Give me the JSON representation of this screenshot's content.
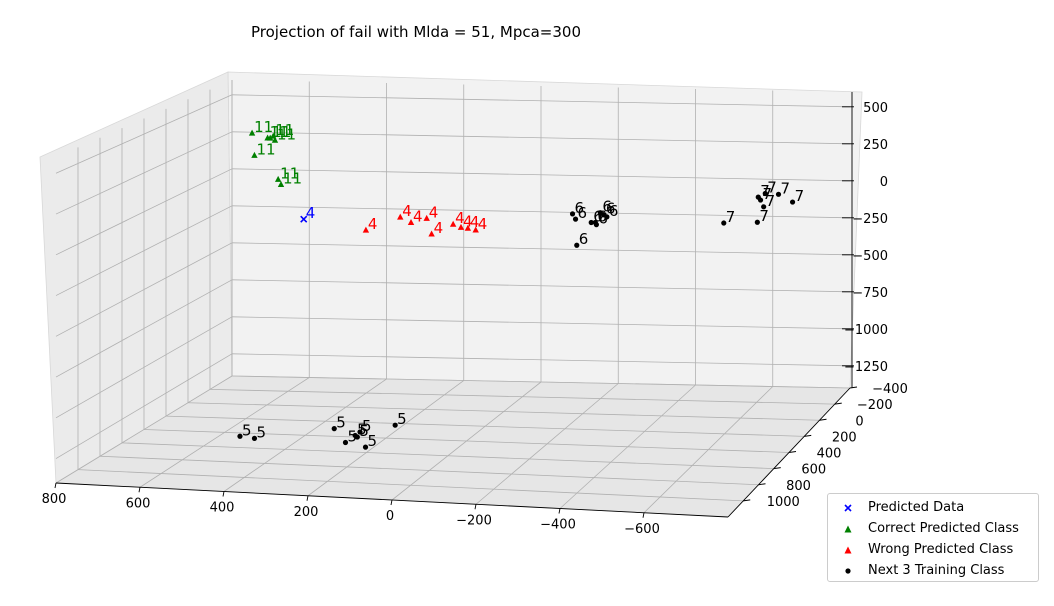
{
  "chart_data": {
    "type": "scatter",
    "title": "Projection of fail with Mlda = 51, Mpca=300",
    "axes": {
      "x": {
        "ticks": [
          800,
          600,
          400,
          200,
          0,
          -200,
          -400,
          -600
        ],
        "tick_labels": [
          "800",
          "600",
          "400",
          "200",
          "0",
          "−200",
          "−400",
          "−600"
        ]
      },
      "y": {
        "ticks": [
          -400,
          -200,
          0,
          200,
          400,
          600,
          800,
          1000
        ],
        "tick_labels": [
          "−400",
          "−200",
          "0",
          "200",
          "400",
          "600",
          "800",
          "1000"
        ]
      },
      "z": {
        "ticks": [
          500,
          250,
          0,
          -250,
          -500,
          -750,
          -1000,
          -1250
        ],
        "tick_labels": [
          "500",
          "250",
          "0",
          "−250",
          "−500",
          "−750",
          "−1000",
          "−1250"
        ]
      }
    },
    "grid": true,
    "legend_position": "bottom-right",
    "series": [
      {
        "name": "Predicted Data",
        "marker": "x",
        "color": "#0000ff",
        "points": [
          {
            "label": "4",
            "x": 560,
            "y": -200,
            "z": -250
          }
        ]
      },
      {
        "name": "Correct Predicted Class",
        "marker": "triangle",
        "color": "#008000",
        "points": [
          {
            "label": "11",
            "x": 720,
            "y": -300,
            "z": 280
          },
          {
            "label": "11",
            "x": 680,
            "y": -300,
            "z": 250
          },
          {
            "label": "11",
            "x": 660,
            "y": -280,
            "z": 270
          },
          {
            "label": "11",
            "x": 665,
            "y": -270,
            "z": 260
          },
          {
            "label": "11",
            "x": 650,
            "y": -260,
            "z": 250
          },
          {
            "label": "11",
            "x": 700,
            "y": -250,
            "z": 150
          },
          {
            "label": "11",
            "x": 620,
            "y": -180,
            "z": 20
          },
          {
            "label": "11",
            "x": 610,
            "y": -170,
            "z": -10
          }
        ]
      },
      {
        "name": "Wrong Predicted Class",
        "marker": "triangle",
        "color": "#ff0000",
        "points": [
          {
            "label": "4",
            "x": 300,
            "y": -150,
            "z": -200
          },
          {
            "label": "4",
            "x": 230,
            "y": -140,
            "z": -200
          },
          {
            "label": "4",
            "x": 270,
            "y": -140,
            "z": -230
          },
          {
            "label": "4",
            "x": 160,
            "y": -130,
            "z": -230
          },
          {
            "label": "4",
            "x": 140,
            "y": -130,
            "z": -250
          },
          {
            "label": "4",
            "x": 120,
            "y": -120,
            "z": -250
          },
          {
            "label": "4",
            "x": 100,
            "y": -120,
            "z": -260
          },
          {
            "label": "4",
            "x": 380,
            "y": -120,
            "z": -280
          },
          {
            "label": "4",
            "x": 210,
            "y": -110,
            "z": -290
          }
        ]
      },
      {
        "name": "Next 3 Training Class",
        "marker": "circle",
        "color": "#000000",
        "points": [
          {
            "label": "6",
            "x": -140,
            "y": -150,
            "z": -150
          },
          {
            "label": "6",
            "x": -150,
            "y": -140,
            "z": -180
          },
          {
            "label": "6",
            "x": -190,
            "y": -140,
            "z": -200
          },
          {
            "label": "6",
            "x": -220,
            "y": -150,
            "z": -150
          },
          {
            "label": "6",
            "x": -230,
            "y": -140,
            "z": -160
          },
          {
            "label": "6",
            "x": -205,
            "y": -120,
            "z": -190
          },
          {
            "label": "6",
            "x": -210,
            "y": -110,
            "z": -200
          },
          {
            "label": "6",
            "x": -220,
            "y": -110,
            "z": -120
          },
          {
            "label": "6",
            "x": -160,
            "y": -110,
            "z": -340
          },
          {
            "label": "7",
            "x": -600,
            "y": -220,
            "z": -40
          },
          {
            "label": "7",
            "x": -610,
            "y": -200,
            "z": -50
          },
          {
            "label": "7",
            "x": -620,
            "y": -210,
            "z": -10
          },
          {
            "label": "7",
            "x": -620,
            "y": -190,
            "z": -90
          },
          {
            "label": "7",
            "x": -610,
            "y": -160,
            "z": -180
          },
          {
            "label": "7",
            "x": -660,
            "y": -180,
            "z": 0
          },
          {
            "label": "7",
            "x": -700,
            "y": -160,
            "z": -40
          },
          {
            "label": "7",
            "x": -520,
            "y": -180,
            "z": -200
          },
          {
            "label": "5",
            "x": 120,
            "y": 640,
            "z": -1200
          },
          {
            "label": "5",
            "x": 250,
            "y": 720,
            "z": -1200
          },
          {
            "label": "5",
            "x": 180,
            "y": 750,
            "z": -1200
          },
          {
            "label": "5",
            "x": 180,
            "y": 800,
            "z": -1200
          },
          {
            "label": "5",
            "x": 170,
            "y": 820,
            "z": -1200
          },
          {
            "label": "5",
            "x": 440,
            "y": 880,
            "z": -1200
          },
          {
            "label": "5",
            "x": 400,
            "y": 900,
            "z": -1200
          },
          {
            "label": "5",
            "x": 180,
            "y": 900,
            "z": -1200
          },
          {
            "label": "5",
            "x": 120,
            "y": 950,
            "z": -1200
          }
        ]
      }
    ]
  }
}
